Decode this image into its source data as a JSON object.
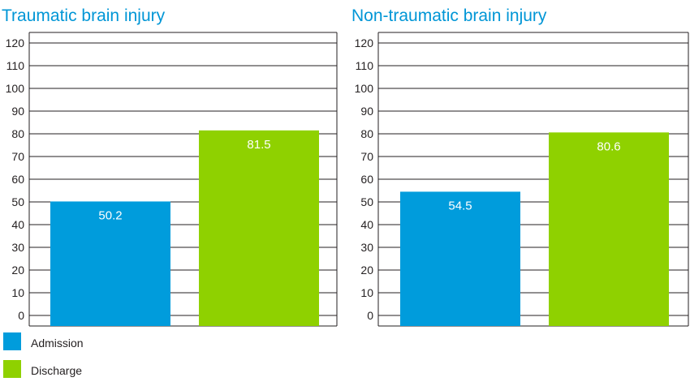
{
  "colors": {
    "admission": "#009cdc",
    "discharge": "#8fd100",
    "title": "#0096d6",
    "grid": "#231f20"
  },
  "legend": [
    {
      "label": "Admission",
      "color": "#009cdc"
    },
    {
      "label": "Discharge",
      "color": "#8fd100"
    }
  ],
  "chart_data": [
    {
      "type": "bar",
      "title": "Traumatic brain injury",
      "categories": [
        "Admission",
        "Discharge"
      ],
      "values": [
        50.2,
        81.5
      ],
      "value_labels": [
        "50.2",
        "81.5"
      ],
      "ylim": [
        0,
        120
      ],
      "yticks": [
        "0",
        "10",
        "20",
        "30",
        "40",
        "50",
        "60",
        "70",
        "80",
        "90",
        "100",
        "110",
        "120"
      ],
      "grid": true
    },
    {
      "type": "bar",
      "title": "Non-traumatic brain injury",
      "categories": [
        "Admission",
        "Discharge"
      ],
      "values": [
        54.5,
        80.6
      ],
      "value_labels": [
        "54.5",
        "80.6"
      ],
      "ylim": [
        0,
        120
      ],
      "yticks": [
        "0",
        "10",
        "20",
        "30",
        "40",
        "50",
        "60",
        "70",
        "80",
        "90",
        "100",
        "110",
        "120"
      ],
      "grid": true
    }
  ]
}
